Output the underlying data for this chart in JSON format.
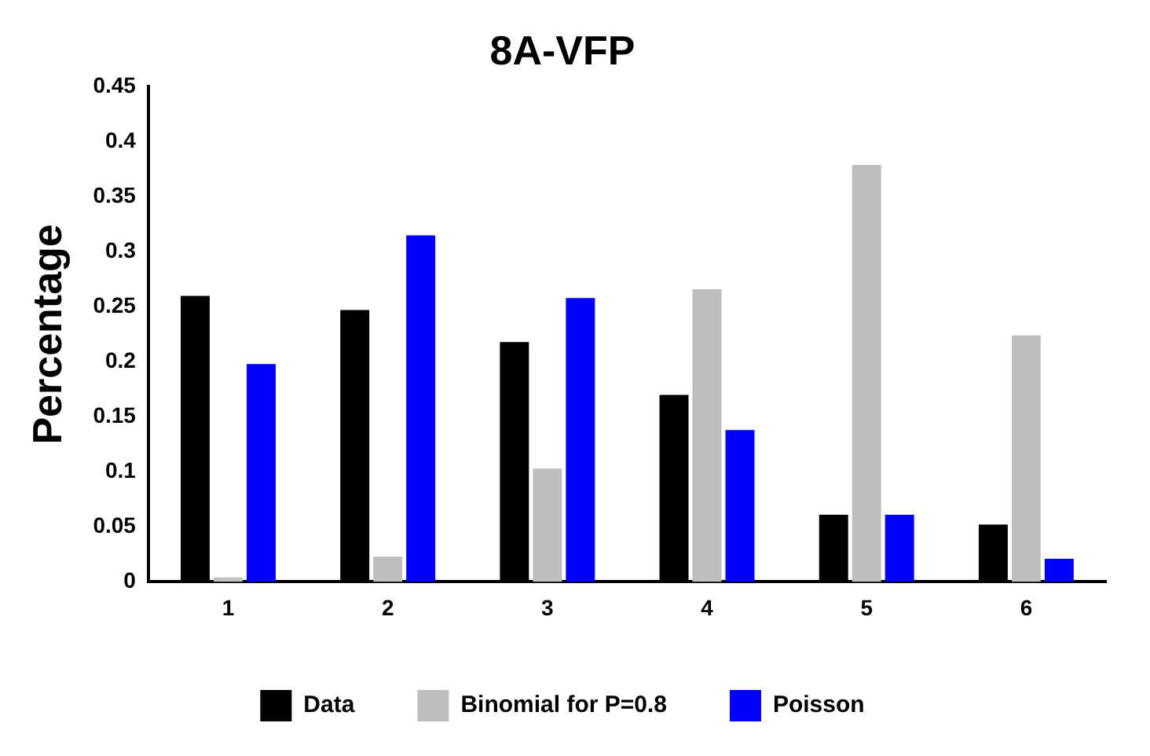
{
  "chart_data": {
    "type": "bar",
    "title": "8A-VFP",
    "ylabel": "Percentage",
    "categories": [
      "1",
      "2",
      "3",
      "4",
      "5",
      "6"
    ],
    "series": [
      {
        "name": "Data",
        "color": "#000000",
        "values": [
          0.26,
          0.247,
          0.218,
          0.17,
          0.061,
          0.052
        ]
      },
      {
        "name": "Binomial for P=0.8",
        "color": "#bebebe",
        "values": [
          0.004,
          0.023,
          0.103,
          0.266,
          0.379,
          0.224
        ]
      },
      {
        "name": "Poisson",
        "color": "#0000ff",
        "values": [
          0.198,
          0.315,
          0.258,
          0.138,
          0.061,
          0.021
        ]
      }
    ],
    "ylim": [
      0,
      0.45
    ],
    "yticks": [
      0,
      0.05,
      0.1,
      0.15,
      0.2,
      0.25,
      0.3,
      0.35,
      0.4,
      0.45
    ],
    "grid": false,
    "legend": "bottom"
  }
}
